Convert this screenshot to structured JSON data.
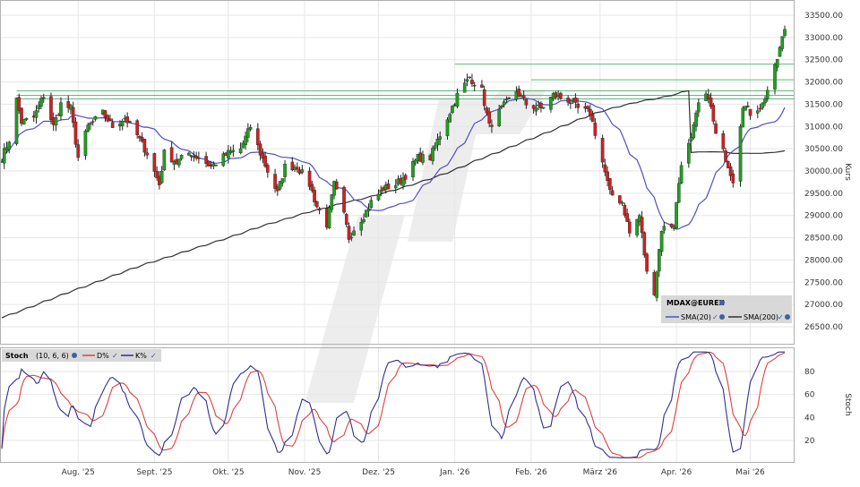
{
  "chart_data": [
    {
      "type": "candlestick",
      "instrument": "MDAX@EUREX",
      "ylabel": "Kurs",
      "ylim": [
        26500,
        33500
      ],
      "yticks": [
        26500,
        27000,
        27500,
        28000,
        28500,
        29000,
        29500,
        30000,
        30500,
        31000,
        31500,
        32000,
        32500,
        33000,
        33500
      ],
      "ytick_labels": [
        "26500.00",
        "27000.00",
        "27500.00",
        "28000.00",
        "28500.00",
        "29000.00",
        "29500.00",
        "30000.00",
        "30500.00",
        "31000.00",
        "31500.00",
        "32000.00",
        "32500.00",
        "33000.00",
        "33500.00"
      ],
      "xticks": [
        "Aug. '25",
        "Sept. '25",
        "Okt. '25",
        "Nov. '25",
        "Dez. '25",
        "Jan. '26",
        "Feb. '26",
        "März '26",
        "Apr. '26",
        "Mai '26"
      ],
      "grid": true,
      "legend_position": "bottom-right",
      "legend": [
        {
          "name": "SMA(20)",
          "color": "#5050c0"
        },
        {
          "name": "SMA(200)",
          "color": "#303030"
        }
      ],
      "colors": {
        "up": "#20a020",
        "down": "#d02020",
        "sma20": "#5050c0",
        "sma200": "#303030",
        "support": "#60b880"
      },
      "horizontal_levels": [
        32400,
        32050,
        31800,
        31700,
        31620
      ],
      "close_anchors": [
        [
          "2025-07-01",
          30300
        ],
        [
          "2025-07-04",
          30700
        ],
        [
          "2025-07-07",
          31600
        ],
        [
          "2025-07-09",
          31100
        ],
        [
          "2025-07-14",
          31200
        ],
        [
          "2025-07-18",
          31700
        ],
        [
          "2025-07-22",
          31000
        ],
        [
          "2025-07-25",
          31500
        ],
        [
          "2025-07-29",
          31400
        ],
        [
          "2025-08-01",
          30300
        ],
        [
          "2025-08-05",
          31000
        ],
        [
          "2025-08-11",
          31300
        ],
        [
          "2025-08-15",
          31000
        ],
        [
          "2025-08-20",
          31200
        ],
        [
          "2025-08-25",
          30800
        ],
        [
          "2025-08-29",
          30400
        ],
        [
          "2025-09-03",
          29700
        ],
        [
          "2025-09-05",
          30400
        ],
        [
          "2025-09-10",
          30200
        ],
        [
          "2025-09-15",
          30400
        ],
        [
          "2025-09-19",
          30300
        ],
        [
          "2025-09-24",
          30100
        ],
        [
          "2025-10-01",
          30400
        ],
        [
          "2025-10-06",
          30500
        ],
        [
          "2025-10-10",
          31000
        ],
        [
          "2025-10-14",
          30400
        ],
        [
          "2025-10-17",
          30000
        ],
        [
          "2025-10-21",
          29500
        ],
        [
          "2025-10-24",
          30100
        ],
        [
          "2025-10-29",
          30100
        ],
        [
          "2025-11-03",
          29700
        ],
        [
          "2025-11-06",
          29200
        ],
        [
          "2025-11-10",
          28800
        ],
        [
          "2025-11-13",
          29700
        ],
        [
          "2025-11-17",
          29000
        ],
        [
          "2025-11-19",
          28500
        ],
        [
          "2025-11-21",
          28700
        ],
        [
          "2025-11-25",
          29000
        ],
        [
          "2025-11-28",
          29300
        ],
        [
          "2025-12-03",
          29600
        ],
        [
          "2025-12-08",
          29700
        ],
        [
          "2025-12-12",
          29900
        ],
        [
          "2025-12-17",
          30300
        ],
        [
          "2025-12-22",
          30300
        ],
        [
          "2025-12-29",
          31200
        ],
        [
          "2026-01-02",
          31700
        ],
        [
          "2026-01-07",
          32100
        ],
        [
          "2026-01-12",
          31800
        ],
        [
          "2026-01-15",
          31000
        ],
        [
          "2026-01-20",
          31400
        ],
        [
          "2026-01-26",
          31800
        ],
        [
          "2026-01-30",
          31500
        ],
        [
          "2026-02-05",
          31400
        ],
        [
          "2026-02-10",
          31700
        ],
        [
          "2026-02-16",
          31600
        ],
        [
          "2026-02-20",
          31400
        ],
        [
          "2026-02-25",
          31300
        ],
        [
          "2026-03-02",
          30200
        ],
        [
          "2026-03-05",
          29500
        ],
        [
          "2026-03-10",
          29300
        ],
        [
          "2026-03-13",
          28600
        ],
        [
          "2026-03-17",
          29000
        ],
        [
          "2026-03-20",
          27700
        ],
        [
          "2026-03-23",
          27300
        ],
        [
          "2026-03-26",
          28700
        ],
        [
          "2026-03-31",
          28800
        ],
        [
          "2026-04-03",
          30200
        ],
        [
          "2026-04-07",
          30700
        ],
        [
          "2026-04-10",
          31500
        ],
        [
          "2026-04-14",
          31700
        ],
        [
          "2026-04-17",
          30800
        ],
        [
          "2026-04-21",
          30300
        ],
        [
          "2026-04-24",
          29800
        ],
        [
          "2026-04-28",
          31500
        ],
        [
          "2026-05-01",
          31300
        ],
        [
          "2026-05-06",
          31500
        ],
        [
          "2026-05-11",
          32300
        ],
        [
          "2026-05-15",
          33200
        ]
      ]
    },
    {
      "type": "line",
      "indicator": "Stoch",
      "params": "(10, 6, 6)",
      "ylabel": "Stoch",
      "ylim": [
        0,
        100
      ],
      "yticks": [
        20,
        40,
        60,
        80
      ],
      "series": [
        {
          "name": "D%",
          "color": "#e04040"
        },
        {
          "name": "K%",
          "color": "#303090"
        }
      ]
    }
  ]
}
